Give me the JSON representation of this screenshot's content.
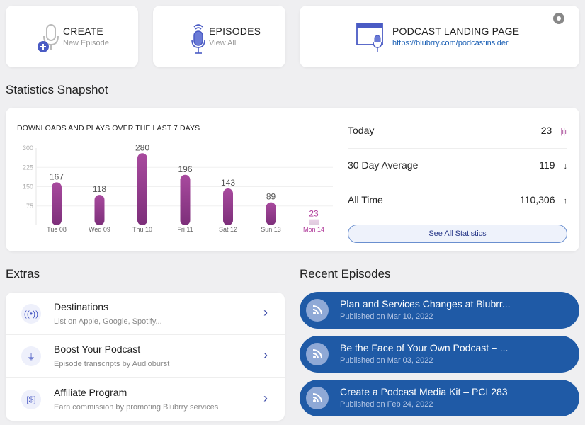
{
  "quick_actions": [
    {
      "title": "CREATE",
      "subtitle": "New Episode",
      "icon": "microphone-plus-icon"
    },
    {
      "title": "EPISODES",
      "subtitle": "View All",
      "icon": "microphone-icon"
    },
    {
      "title": "PODCAST LANDING PAGE",
      "subtitle": "https://blubrry.com/podcastinsider",
      "icon": "browser-microphone-icon"
    }
  ],
  "stats_section": {
    "title": "Statistics Snapshot"
  },
  "chart_data": {
    "type": "bar",
    "title": "DOWNLOADS AND PLAYS OVER THE LAST 7 DAYS",
    "categories": [
      "Tue 08",
      "Wed 09",
      "Thu 10",
      "Fri 11",
      "Sat 12",
      "Sun 13",
      "Mon 14"
    ],
    "values": [
      167,
      118,
      280,
      196,
      143,
      89,
      23
    ],
    "yticks": [
      "300",
      "225",
      "150",
      "75"
    ],
    "ylim": [
      0,
      300
    ],
    "grid": true,
    "bar_color": "#8e3a8a",
    "highlight_color": "#b03a9a"
  },
  "stats": {
    "rows": [
      {
        "label": "Today",
        "value": "23",
        "icon": "waveform-icon"
      },
      {
        "label": "30 Day Average",
        "value": "119",
        "icon": "arrow-down-icon"
      },
      {
        "label": "All Time",
        "value": "110,306",
        "icon": "arrow-up-icon"
      }
    ],
    "button": "See All Statistics"
  },
  "extras": {
    "title": "Extras",
    "items": [
      {
        "title": "Destinations",
        "subtitle": "List on Apple, Google, Spotify...",
        "icon": "broadcast-icon"
      },
      {
        "title": "Boost Your Podcast",
        "subtitle": "Episode transcripts by Audioburst",
        "icon": "plug-icon"
      },
      {
        "title": "Affiliate Program",
        "subtitle": "Earn commission by promoting Blubrry services",
        "icon": "dollar-icon"
      }
    ]
  },
  "recent": {
    "title": "Recent Episodes",
    "items": [
      {
        "title": "Plan and Services Changes at Blubrr...",
        "date": "Published on Mar 10, 2022"
      },
      {
        "title": "Be the Face of Your Own Podcast – ...",
        "date": "Published on Mar 03, 2022"
      },
      {
        "title": "Create a Podcast Media Kit – PCI 283",
        "date": "Published on Feb 24, 2022"
      }
    ]
  },
  "colors": {
    "accent": "#4a5bc4",
    "episode_bg": "#1f5aa6",
    "link": "#1a5fb4"
  }
}
